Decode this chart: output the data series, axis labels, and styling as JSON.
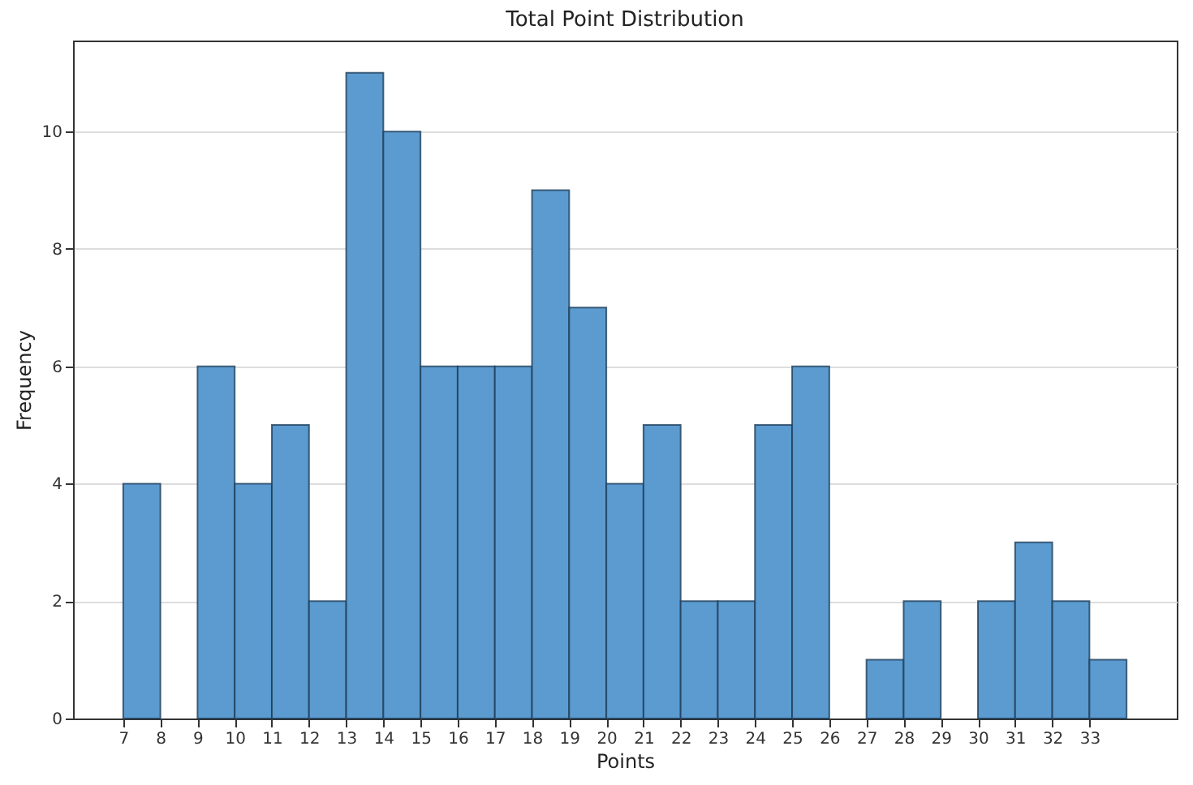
{
  "chart_data": {
    "type": "histogram",
    "title": "Total Point Distribution",
    "xlabel": "Points",
    "ylabel": "Frequency",
    "bins": [
      7,
      8,
      9,
      10,
      11,
      12,
      13,
      14,
      15,
      16,
      17,
      18,
      19,
      20,
      21,
      22,
      23,
      24,
      25,
      26,
      27,
      28,
      29,
      30,
      31,
      32,
      33,
      34
    ],
    "values": [
      4,
      0,
      6,
      4,
      5,
      2,
      11,
      10,
      6,
      6,
      6,
      9,
      7,
      4,
      5,
      2,
      2,
      5,
      6,
      0,
      1,
      2,
      0,
      2,
      3,
      2,
      1
    ],
    "color": "#5b9bd0",
    "xlim": [
      5.65,
      35.35
    ],
    "xticks": [
      7,
      8,
      9,
      10,
      11,
      12,
      13,
      14,
      15,
      16,
      17,
      18,
      19,
      20,
      21,
      22,
      23,
      24,
      25,
      26,
      27,
      28,
      29,
      30,
      31,
      32,
      33
    ],
    "ylim": [
      0,
      11.55
    ],
    "yticks": [
      0,
      2,
      4,
      6,
      8,
      10
    ],
    "grid": "y"
  }
}
